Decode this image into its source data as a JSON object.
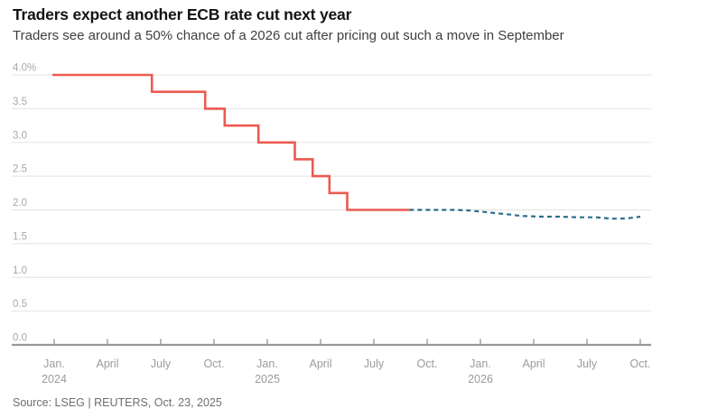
{
  "chart_data": {
    "type": "line",
    "title": "Traders expect another ECB rate cut next year",
    "subtitle": "Traders see around a 50% chance of a 2026 cut after pricing out such a move in September",
    "source": "Source: LSEG | REUTERS, Oct. 23, 2025",
    "ylim": [
      0.0,
      4.0
    ],
    "grid": true,
    "legend": "none",
    "x_unit": "months since Jan. 2024",
    "y_ticks": [
      {
        "v": 4.0,
        "label": "4.0%"
      },
      {
        "v": 3.5,
        "label": "3.5"
      },
      {
        "v": 3.0,
        "label": "3.0"
      },
      {
        "v": 2.5,
        "label": "2.5"
      },
      {
        "v": 2.0,
        "label": "2.0"
      },
      {
        "v": 1.5,
        "label": "1.5"
      },
      {
        "v": 1.0,
        "label": "1.0"
      },
      {
        "v": 0.5,
        "label": "0.5"
      },
      {
        "v": 0.0,
        "label": "0.0"
      }
    ],
    "x_ticks": [
      {
        "t": 0,
        "label": "Jan.",
        "year": "2024"
      },
      {
        "t": 3,
        "label": "April",
        "year": ""
      },
      {
        "t": 6,
        "label": "July",
        "year": ""
      },
      {
        "t": 9,
        "label": "Oct.",
        "year": ""
      },
      {
        "t": 12,
        "label": "Jan.",
        "year": "2025"
      },
      {
        "t": 15,
        "label": "April",
        "year": ""
      },
      {
        "t": 18,
        "label": "July",
        "year": ""
      },
      {
        "t": 21,
        "label": "Oct.",
        "year": ""
      },
      {
        "t": 24,
        "label": "Jan.",
        "year": "2026"
      },
      {
        "t": 27,
        "label": "April",
        "year": ""
      },
      {
        "t": 30,
        "label": "July",
        "year": ""
      },
      {
        "t": 33,
        "label": "Oct.",
        "year": ""
      }
    ],
    "series": [
      {
        "name": "ecb-deposit-rate-actual",
        "style": "solid-step",
        "color": "#ec5a50",
        "steps": [
          {
            "from_t": -0.1,
            "to_t": 5.5,
            "rate": 4.0
          },
          {
            "from_t": 5.5,
            "to_t": 8.5,
            "rate": 3.75
          },
          {
            "from_t": 8.5,
            "to_t": 9.6,
            "rate": 3.5
          },
          {
            "from_t": 9.6,
            "to_t": 11.5,
            "rate": 3.25
          },
          {
            "from_t": 11.5,
            "to_t": 13.55,
            "rate": 3.0
          },
          {
            "from_t": 13.55,
            "to_t": 14.55,
            "rate": 2.75
          },
          {
            "from_t": 14.55,
            "to_t": 15.5,
            "rate": 2.5
          },
          {
            "from_t": 15.5,
            "to_t": 16.5,
            "rate": 2.25
          },
          {
            "from_t": 16.5,
            "to_t": 20.0,
            "rate": 2.0
          }
        ]
      },
      {
        "name": "market-implied-forward-rate",
        "style": "dashed",
        "color": "#2c6c8f",
        "points": [
          {
            "t": 20.0,
            "rate": 2.0
          },
          {
            "t": 22.6,
            "rate": 2.0
          },
          {
            "t": 23.4,
            "rate": 1.99
          },
          {
            "t": 24.2,
            "rate": 1.97
          },
          {
            "t": 24.9,
            "rate": 1.95
          },
          {
            "t": 25.7,
            "rate": 1.93
          },
          {
            "t": 26.3,
            "rate": 1.91
          },
          {
            "t": 27.5,
            "rate": 1.9
          },
          {
            "t": 28.5,
            "rate": 1.9
          },
          {
            "t": 29.5,
            "rate": 1.89
          },
          {
            "t": 30.5,
            "rate": 1.89
          },
          {
            "t": 31.4,
            "rate": 1.87
          },
          {
            "t": 31.9,
            "rate": 1.87
          },
          {
            "t": 32.4,
            "rate": 1.88
          },
          {
            "t": 33.0,
            "rate": 1.9
          }
        ]
      }
    ]
  },
  "colors": {
    "accent_red": "#ec5a50",
    "accent_blue": "#2c6c8f",
    "grid": "#e3e3e3",
    "axis": "#999999",
    "x_tick_label": "#9b9b9b",
    "y_tick_label": "#a8a8a8",
    "title": "#141414",
    "subtitle": "#3f3f3f",
    "source": "#6e6e6e"
  }
}
